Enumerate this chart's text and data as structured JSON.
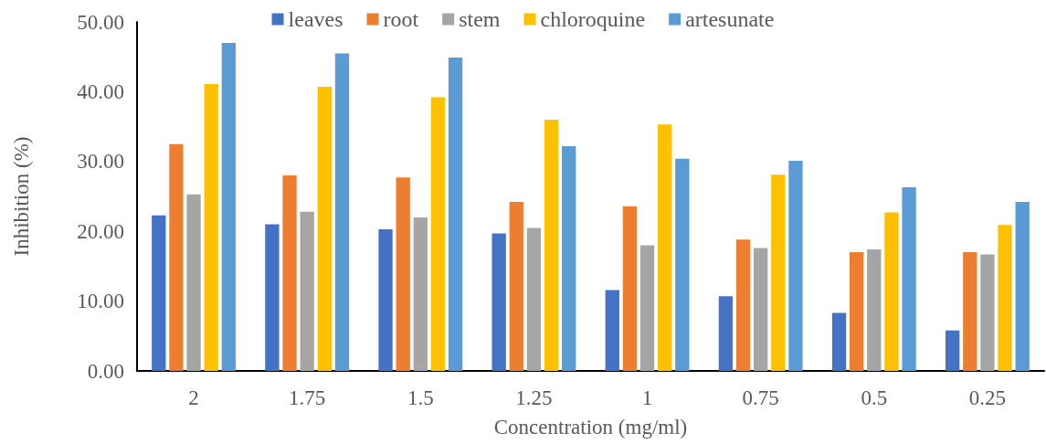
{
  "chart_data": {
    "type": "bar",
    "xlabel": "Concentration (mg/ml)",
    "ylabel": "Inhibition (%)",
    "categories": [
      "2",
      "1.75",
      "1.5",
      "1.25",
      "1",
      "0.75",
      "0.5",
      "0.25"
    ],
    "series": [
      {
        "name": "leaves",
        "color": "#4472c4",
        "values": [
          22.3,
          21.0,
          20.3,
          19.7,
          11.6,
          10.7,
          8.3,
          5.8
        ]
      },
      {
        "name": "root",
        "color": "#ed7d31",
        "values": [
          32.5,
          28.0,
          27.7,
          24.2,
          23.6,
          18.8,
          17.0,
          17.0
        ]
      },
      {
        "name": "stem",
        "color": "#a5a5a5",
        "values": [
          25.3,
          22.8,
          22.0,
          20.5,
          18.0,
          17.6,
          17.4,
          16.7
        ]
      },
      {
        "name": "chloroquine",
        "color": "#ffc000",
        "values": [
          41.1,
          40.7,
          39.2,
          36.0,
          35.3,
          28.1,
          22.7,
          20.9
        ]
      },
      {
        "name": "artesunate",
        "color": "#5b9bd5",
        "values": [
          47.0,
          45.5,
          44.9,
          32.2,
          30.4,
          30.1,
          26.3,
          24.2
        ]
      }
    ],
    "ylim": [
      0,
      50
    ],
    "yticks": [
      {
        "value": 0,
        "label": "0.00"
      },
      {
        "value": 10,
        "label": "10.00"
      },
      {
        "value": 20,
        "label": "20.00"
      },
      {
        "value": 30,
        "label": "30.00"
      },
      {
        "value": 40,
        "label": "40.00"
      },
      {
        "value": 50,
        "label": "50.00"
      }
    ],
    "grid": false,
    "legend": "top"
  }
}
